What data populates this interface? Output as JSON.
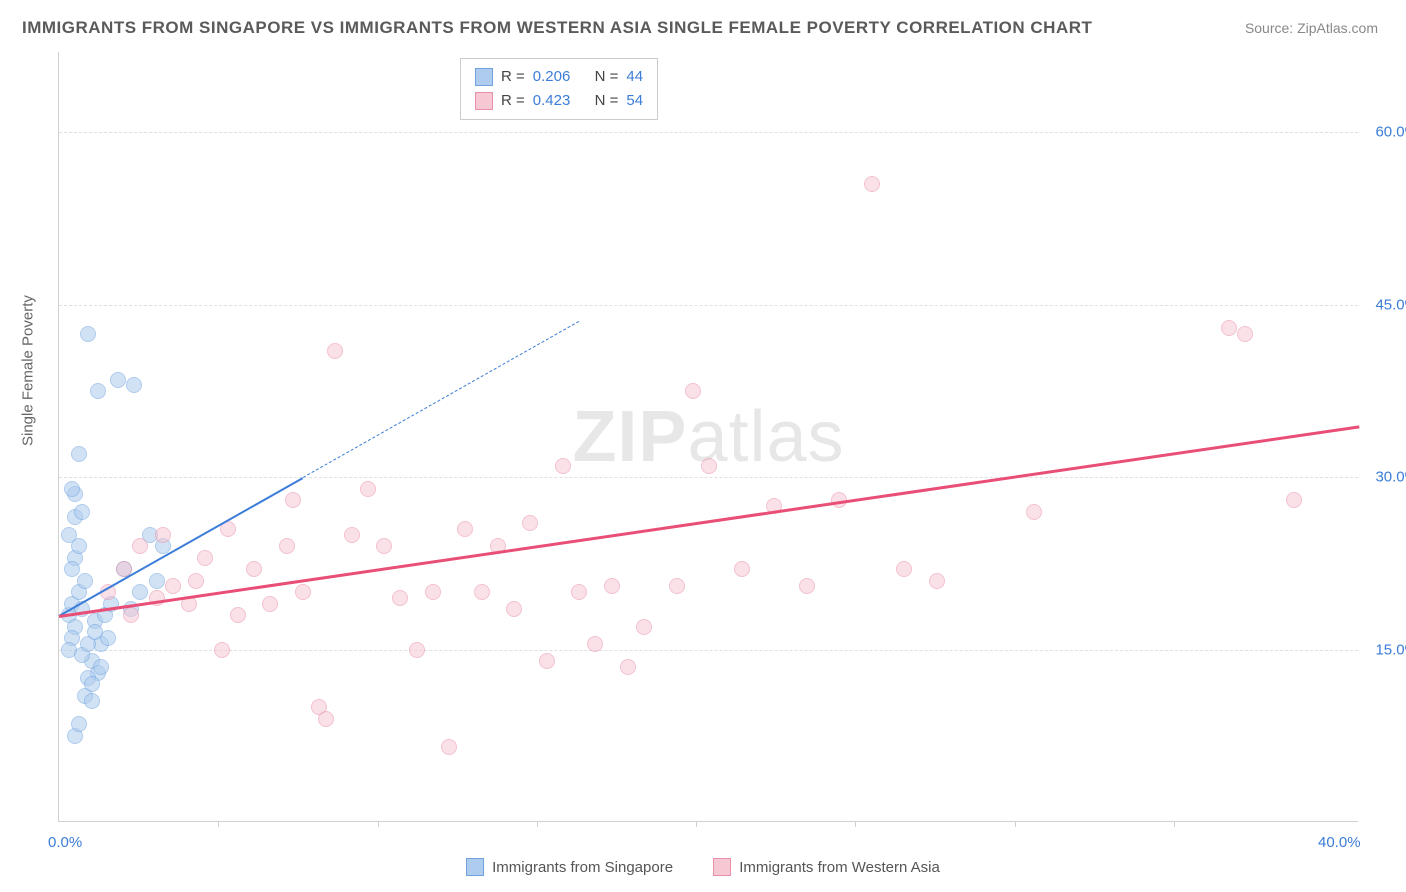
{
  "title": "IMMIGRANTS FROM SINGAPORE VS IMMIGRANTS FROM WESTERN ASIA SINGLE FEMALE POVERTY CORRELATION CHART",
  "source": "Source: ZipAtlas.com",
  "watermark_bold": "ZIP",
  "watermark_light": "atlas",
  "y_axis_label": "Single Female Poverty",
  "chart": {
    "type": "scatter",
    "background_color": "#ffffff",
    "grid_color": "#e0e0e0",
    "axis_color": "#d0d0d0",
    "xlim": [
      0,
      40
    ],
    "ylim": [
      0,
      67
    ],
    "x_ticks": [
      0,
      40
    ],
    "x_minor_ticks": [
      4.9,
      9.8,
      14.7,
      19.6,
      24.5,
      29.4,
      34.3
    ],
    "y_ticks": [
      15,
      30,
      45,
      60
    ],
    "tick_format": "percent",
    "tick_color": "#3b7dd8",
    "tick_fontsize": 15,
    "marker_radius": 8,
    "marker_opacity": 0.55,
    "series": [
      {
        "name": "Immigrants from Singapore",
        "color_fill": "#aeccee",
        "color_stroke": "#6ea3df",
        "r_value": "0.206",
        "n_value": "44",
        "trend": {
          "x0": 0,
          "y0": 18,
          "x1": 7.5,
          "y1": 30,
          "extrapolate_to_x": 16,
          "color": "#3b7dd8",
          "width": 2,
          "dash": true
        },
        "points": [
          [
            0.3,
            18
          ],
          [
            0.5,
            17
          ],
          [
            0.4,
            19
          ],
          [
            0.6,
            20
          ],
          [
            0.4,
            16
          ],
          [
            0.3,
            15
          ],
          [
            0.7,
            18.5
          ],
          [
            0.8,
            21
          ],
          [
            0.5,
            23
          ],
          [
            0.4,
            22
          ],
          [
            0.6,
            24
          ],
          [
            0.3,
            25
          ],
          [
            0.5,
            26.5
          ],
          [
            1.0,
            14
          ],
          [
            1.2,
            13
          ],
          [
            0.9,
            12.5
          ],
          [
            1.3,
            15.5
          ],
          [
            1.5,
            16
          ],
          [
            1.1,
            17.5
          ],
          [
            1.4,
            18
          ],
          [
            1.6,
            19
          ],
          [
            0.8,
            11
          ],
          [
            1.0,
            10.5
          ],
          [
            0.6,
            32
          ],
          [
            0.5,
            28.5
          ],
          [
            0.7,
            27
          ],
          [
            0.4,
            29
          ],
          [
            0.9,
            42.5
          ],
          [
            1.8,
            38.5
          ],
          [
            2.3,
            38
          ],
          [
            1.2,
            37.5
          ],
          [
            2.8,
            25
          ],
          [
            3.2,
            24
          ],
          [
            2.5,
            20
          ],
          [
            2.0,
            22
          ],
          [
            3.0,
            21
          ],
          [
            2.2,
            18.5
          ],
          [
            0.5,
            7.5
          ],
          [
            1.0,
            12
          ],
          [
            1.3,
            13.5
          ],
          [
            0.7,
            14.5
          ],
          [
            0.9,
            15.5
          ],
          [
            1.1,
            16.5
          ],
          [
            0.6,
            8.5
          ]
        ]
      },
      {
        "name": "Immigrants from Western Asia",
        "color_fill": "#f6c8d4",
        "color_stroke": "#ea8fa9",
        "r_value": "0.423",
        "n_value": "54",
        "trend": {
          "x0": 0,
          "y0": 18,
          "x1": 40,
          "y1": 34.5,
          "color": "#e94e77",
          "width": 2.5,
          "dash": false
        },
        "points": [
          [
            1.5,
            20
          ],
          [
            2.0,
            22
          ],
          [
            2.2,
            18
          ],
          [
            2.5,
            24
          ],
          [
            3.0,
            19.5
          ],
          [
            3.2,
            25
          ],
          [
            3.5,
            20.5
          ],
          [
            4.0,
            19
          ],
          [
            4.2,
            21
          ],
          [
            4.5,
            23
          ],
          [
            5.0,
            15
          ],
          [
            5.2,
            25.5
          ],
          [
            5.5,
            18
          ],
          [
            6.0,
            22
          ],
          [
            6.5,
            19
          ],
          [
            7.0,
            24
          ],
          [
            7.2,
            28
          ],
          [
            7.5,
            20
          ],
          [
            8.0,
            10
          ],
          [
            8.2,
            9
          ],
          [
            8.5,
            41
          ],
          [
            9.0,
            25
          ],
          [
            9.5,
            29
          ],
          [
            10.0,
            24
          ],
          [
            10.5,
            19.5
          ],
          [
            11.0,
            15
          ],
          [
            11.5,
            20
          ],
          [
            12.0,
            6.5
          ],
          [
            12.5,
            25.5
          ],
          [
            13.0,
            20
          ],
          [
            13.5,
            24
          ],
          [
            14.0,
            18.5
          ],
          [
            14.5,
            26
          ],
          [
            15.0,
            14
          ],
          [
            15.5,
            31
          ],
          [
            16.0,
            20
          ],
          [
            16.5,
            15.5
          ],
          [
            17.0,
            20.5
          ],
          [
            17.5,
            13.5
          ],
          [
            18.0,
            17
          ],
          [
            19.0,
            20.5
          ],
          [
            19.5,
            37.5
          ],
          [
            20.0,
            31
          ],
          [
            21.0,
            22
          ],
          [
            22.0,
            27.5
          ],
          [
            23.0,
            20.5
          ],
          [
            24.0,
            28
          ],
          [
            25.0,
            55.5
          ],
          [
            26.0,
            22
          ],
          [
            27.0,
            21
          ],
          [
            30.0,
            27
          ],
          [
            36.0,
            43
          ],
          [
            36.5,
            42.5
          ],
          [
            38.0,
            28
          ]
        ]
      }
    ]
  },
  "legend_top": {
    "r_label": "R =",
    "n_label": "N ="
  },
  "legend_bottom_labels": [
    "Immigrants from Singapore",
    "Immigrants from Western Asia"
  ]
}
